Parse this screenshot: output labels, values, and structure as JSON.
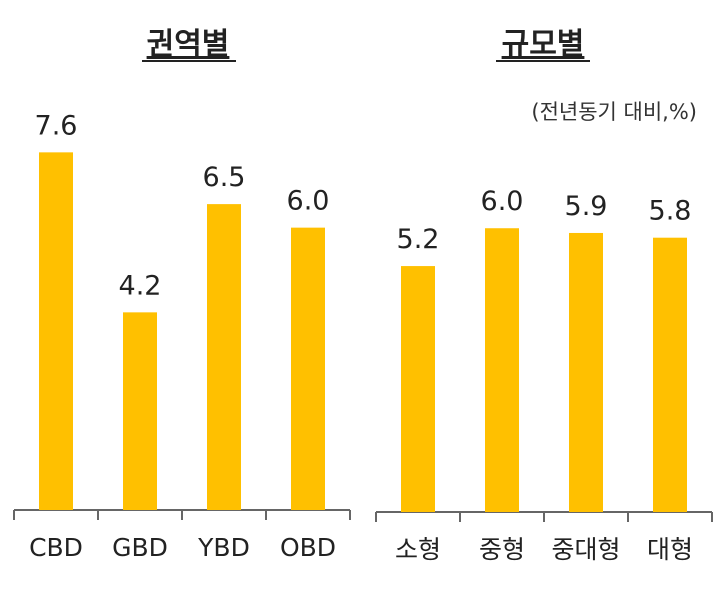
{
  "chart_data": [
    {
      "type": "bar",
      "title": "권역별",
      "categories": [
        "CBD",
        "GBD",
        "YBD",
        "OBD"
      ],
      "values": [
        7.6,
        4.2,
        6.5,
        6.0
      ],
      "value_labels": [
        "7.6",
        "4.2",
        "6.5",
        "6.0"
      ],
      "ylim": [
        0,
        8.5
      ],
      "bar_color": "#FFC000",
      "grid": false,
      "xlabel": "",
      "ylabel": ""
    },
    {
      "type": "bar",
      "title": "규모별",
      "unit_note": "(전년동기 대비,%)",
      "categories": [
        "소형",
        "중형",
        "중대형",
        "대형"
      ],
      "values": [
        5.2,
        6.0,
        5.9,
        5.8
      ],
      "value_labels": [
        "5.2",
        "6.0",
        "5.9",
        "5.8"
      ],
      "ylim": [
        0,
        8.5
      ],
      "bar_color": "#FFC000",
      "grid": false,
      "xlabel": "",
      "ylabel": ""
    }
  ]
}
